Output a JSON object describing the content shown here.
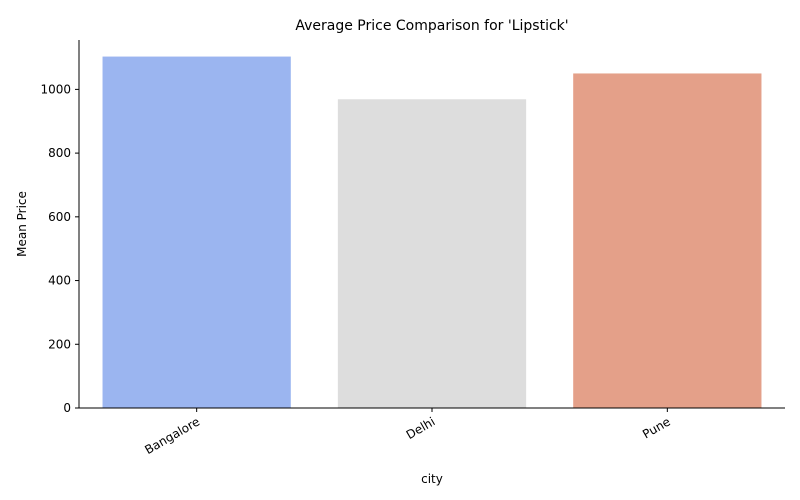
{
  "chart_data": {
    "type": "bar",
    "title": "Average Price Comparison for 'Lipstick'",
    "xlabel": "city",
    "ylabel": "Mean Price",
    "categories": [
      "Bangalore",
      "Delhi",
      "Pune"
    ],
    "values": [
      1103,
      969,
      1050
    ],
    "ylim": [
      0,
      1155
    ],
    "yticks": [
      0,
      200,
      400,
      600,
      800,
      1000
    ],
    "colors": [
      "#9bb5f0",
      "#dddddd",
      "#e4a089"
    ],
    "grid": false,
    "legend": "none"
  }
}
